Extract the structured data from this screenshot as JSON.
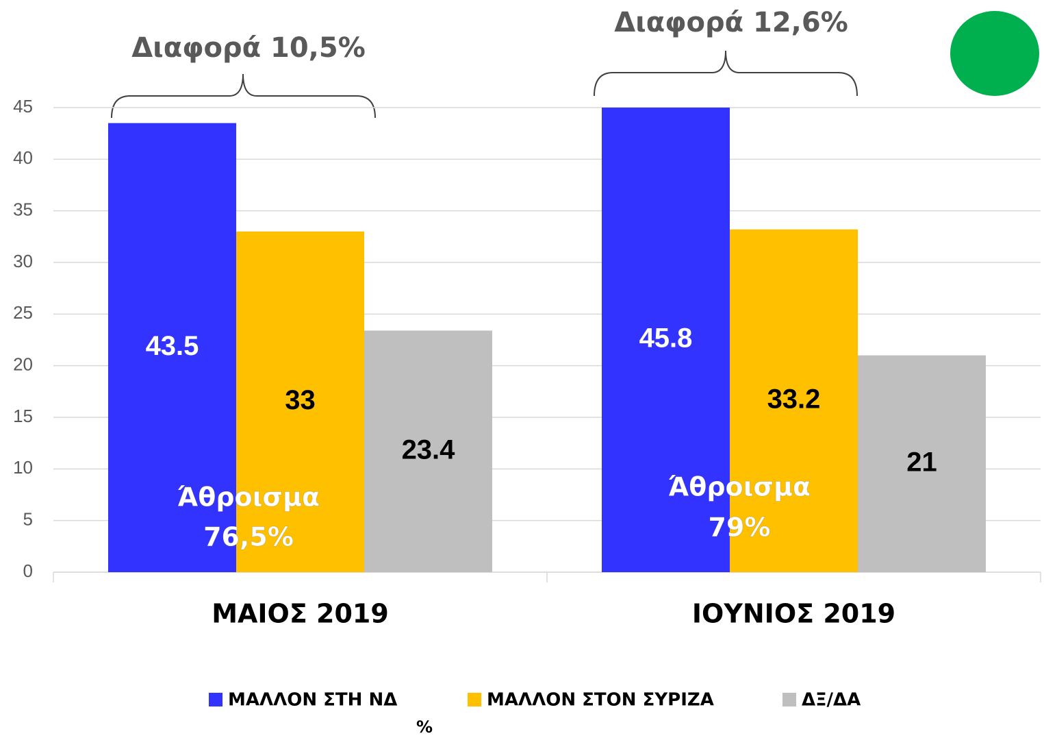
{
  "chart_data": {
    "type": "bar",
    "categories": [
      "ΜΑΙΟΣ 2019",
      "ΙΟΥΝΙΟΣ 2019"
    ],
    "series": [
      {
        "name": "ΜΑΛΛΟΝ ΣΤΗ ΝΔ",
        "color": "#3333ff",
        "label_color": "#ffffff",
        "values": [
          43.5,
          45.8
        ]
      },
      {
        "name": "ΜΑΛΛΟΝ ΣΤΟΝ ΣΥΡΙΖΑ",
        "color": "#ffc000",
        "label_color": "#000000",
        "values": [
          33,
          33.2
        ]
      },
      {
        "name": "ΔΞ/ΔΑ",
        "color": "#bfbfbf",
        "label_color": "#000000",
        "values": [
          23.4,
          21
        ]
      }
    ],
    "ylim": [
      0,
      45
    ],
    "yticks": [
      0,
      5,
      10,
      15,
      20,
      25,
      30,
      35,
      40,
      45
    ],
    "grid": true,
    "legend": "bottom",
    "y_label": "%",
    "annotations": [
      "Διαφορά 10,5%",
      "Διαφορά 12,6%",
      "Άθροισμα",
      "76,5%",
      "Άθροισμα",
      "79%"
    ]
  }
}
